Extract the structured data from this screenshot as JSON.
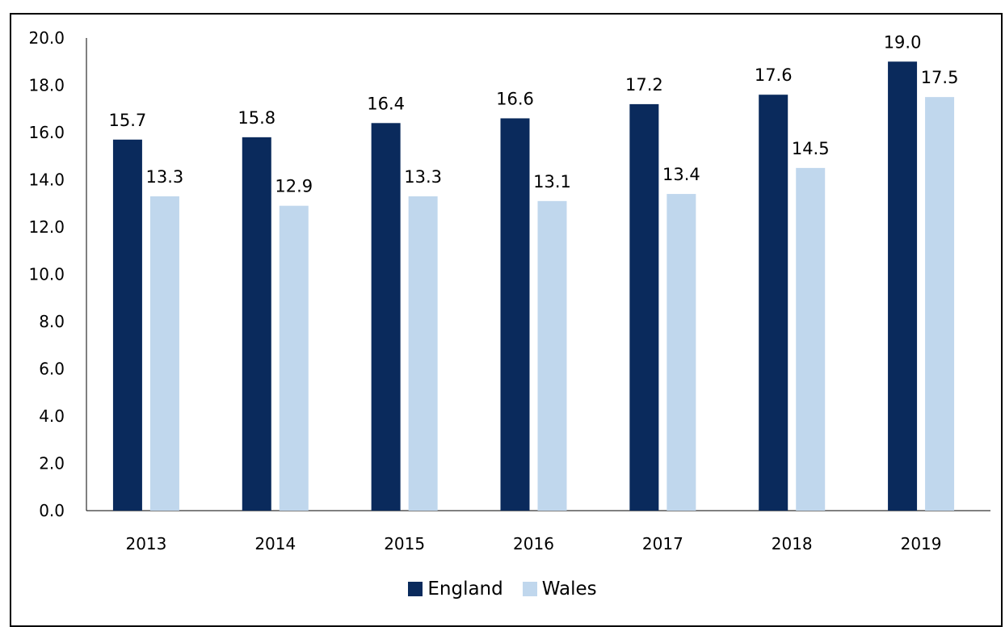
{
  "chart_data": {
    "type": "bar",
    "title": "",
    "xlabel": "",
    "ylabel": "",
    "categories": [
      "2013",
      "2014",
      "2015",
      "2016",
      "2017",
      "2018",
      "2019"
    ],
    "series": [
      {
        "name": "England",
        "color": "#0a2a5c",
        "values": [
          15.7,
          15.8,
          16.4,
          16.6,
          17.2,
          17.6,
          19.0
        ],
        "labels": [
          "15.7",
          "15.8",
          "16.4",
          "16.6",
          "17.2",
          "17.6",
          "19.0"
        ]
      },
      {
        "name": "Wales",
        "color": "#c0d7ed",
        "values": [
          13.3,
          12.9,
          13.3,
          13.1,
          13.4,
          14.5,
          17.5
        ],
        "labels": [
          "13.3",
          "12.9",
          "13.3",
          "13.1",
          "13.4",
          "14.5",
          "17.5"
        ]
      }
    ],
    "ylim": [
      0,
      20
    ],
    "yticks": [
      "0.0",
      "2.0",
      "4.0",
      "6.0",
      "8.0",
      "10.0",
      "12.0",
      "14.0",
      "16.0",
      "18.0",
      "20.0"
    ],
    "grid": false,
    "legend_position": "bottom"
  }
}
